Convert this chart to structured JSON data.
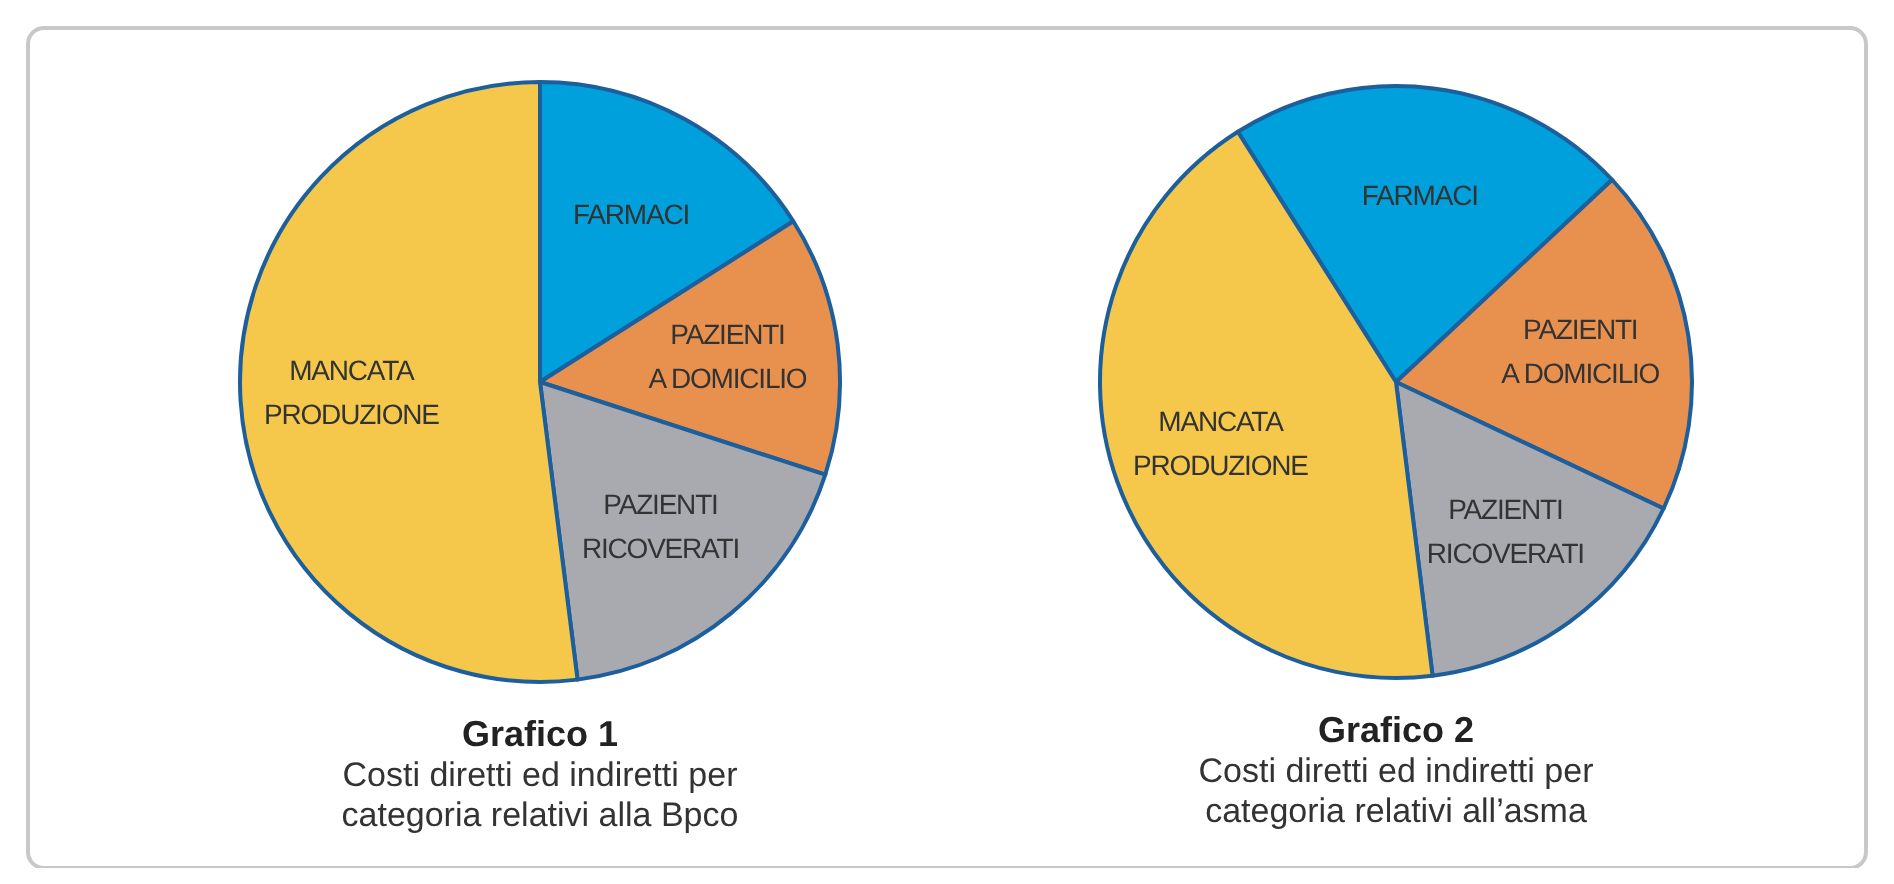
{
  "chart_data": [
    {
      "type": "pie",
      "title": "Grafico 1",
      "subtitle": "Costi diretti ed indiretti per categoria relativi alla Bpco",
      "categories": [
        "FARMACI",
        "PAZIENTI A DOMICILIO",
        "PAZIENTI RICOVERATI",
        "MANCATA PRODUZIONE"
      ],
      "values": [
        16,
        14,
        18,
        52
      ],
      "colors": [
        "#00a0dc",
        "#e8914f",
        "#a8aab0",
        "#f5c84c"
      ]
    },
    {
      "type": "pie",
      "title": "Grafico 2",
      "subtitle": "Costi diretti ed indiretti per categoria relativi all’asma",
      "categories": [
        "FARMACI",
        "PAZIENTI A DOMICILIO",
        "PAZIENTI RICOVERATI",
        "MANCATA PRODUZIONE"
      ],
      "values": [
        22,
        19,
        16,
        43
      ],
      "colors": [
        "#00a0dc",
        "#e8914f",
        "#a8aab0",
        "#f5c84c"
      ]
    }
  ]
}
